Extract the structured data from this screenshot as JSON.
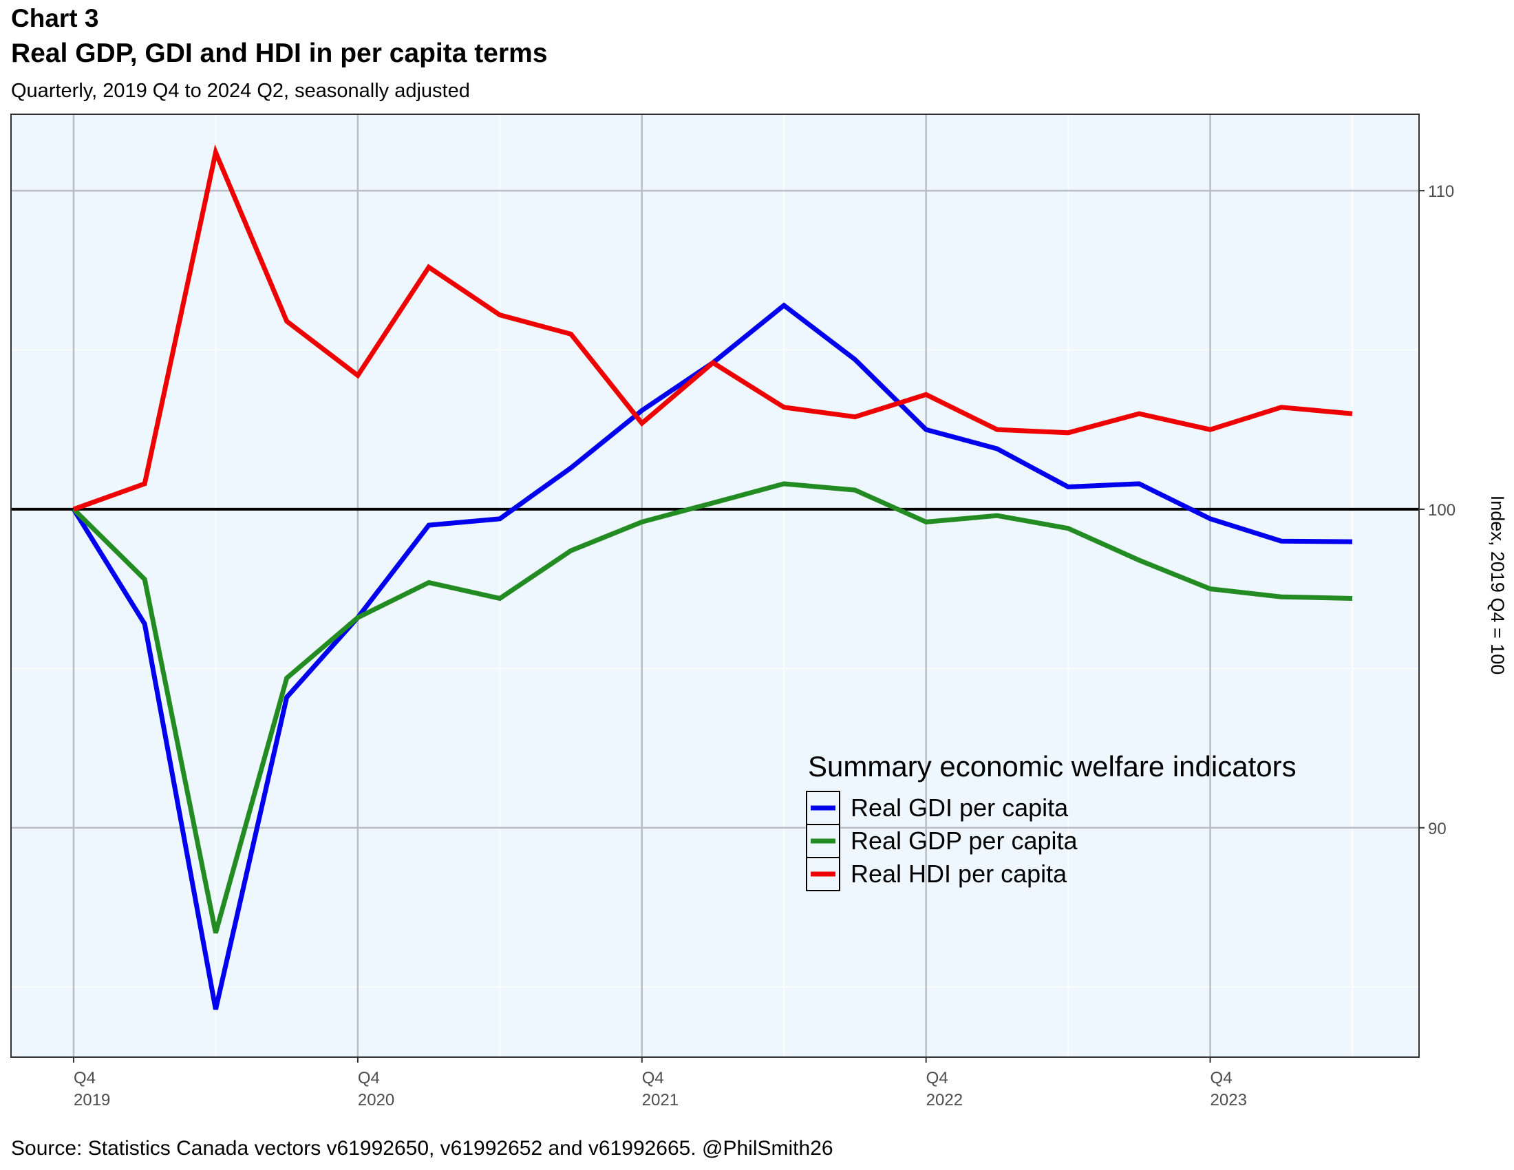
{
  "header": {
    "label": "Chart 3",
    "title": "Real GDP, GDI and HDI in per capita terms",
    "subtitle": "Quarterly, 2019 Q4 to 2024 Q2, seasonally adjusted"
  },
  "source": "Source: Statistics Canada vectors v61992650, v61992652  and v61992665. @PhilSmith26",
  "chart_data": {
    "type": "line",
    "x": [
      "2019 Q4",
      "2020 Q1",
      "2020 Q2",
      "2020 Q3",
      "2020 Q4",
      "2021 Q1",
      "2021 Q2",
      "2021 Q3",
      "2021 Q4",
      "2022 Q1",
      "2022 Q2",
      "2022 Q3",
      "2022 Q4",
      "2023 Q1",
      "2023 Q2",
      "2023 Q3",
      "2023 Q4",
      "2024 Q1",
      "2024 Q2"
    ],
    "x_ticks": [
      {
        "index": 0,
        "quarter": "Q4",
        "year": "2019"
      },
      {
        "index": 4,
        "quarter": "Q4",
        "year": "2020"
      },
      {
        "index": 8,
        "quarter": "Q4",
        "year": "2021"
      },
      {
        "index": 12,
        "quarter": "Q4",
        "year": "2022"
      },
      {
        "index": 16,
        "quarter": "Q4",
        "year": "2023"
      }
    ],
    "ylabel": "Index, 2019 Q4 = 100",
    "y_axis_position": "right",
    "ylim": [
      82.8,
      112.4
    ],
    "y_ticks": [
      90,
      100,
      110
    ],
    "minor_gridlines": [
      85,
      95,
      105
    ],
    "reference_line": 100,
    "grid": true,
    "background": "#eef7fd",
    "series": [
      {
        "name": "Real GDI per capita",
        "color": "#0000ee",
        "values": [
          100,
          96.4,
          84.3,
          94.1,
          96.6,
          99.5,
          99.7,
          101.3,
          103.1,
          104.6,
          106.4,
          104.7,
          102.5,
          101.9,
          100.7,
          100.8,
          99.7,
          99.0,
          98.98
        ]
      },
      {
        "name": "Real GDP per capita",
        "color": "#228b22",
        "values": [
          100,
          97.8,
          86.7,
          94.7,
          96.6,
          97.7,
          97.2,
          98.7,
          99.6,
          100.2,
          100.8,
          100.6,
          99.6,
          99.8,
          99.4,
          98.4,
          97.5,
          97.25,
          97.2
        ]
      },
      {
        "name": "Real HDI per capita",
        "color": "#ee0000",
        "values": [
          100,
          100.8,
          111.2,
          105.9,
          104.2,
          107.6,
          106.1,
          105.5,
          102.7,
          104.6,
          103.2,
          102.9,
          103.6,
          102.5,
          102.4,
          103.0,
          102.5,
          103.2,
          103.0
        ]
      }
    ],
    "legend": {
      "title": "Summary economic welfare indicators",
      "position": "bottom-right inside"
    }
  }
}
